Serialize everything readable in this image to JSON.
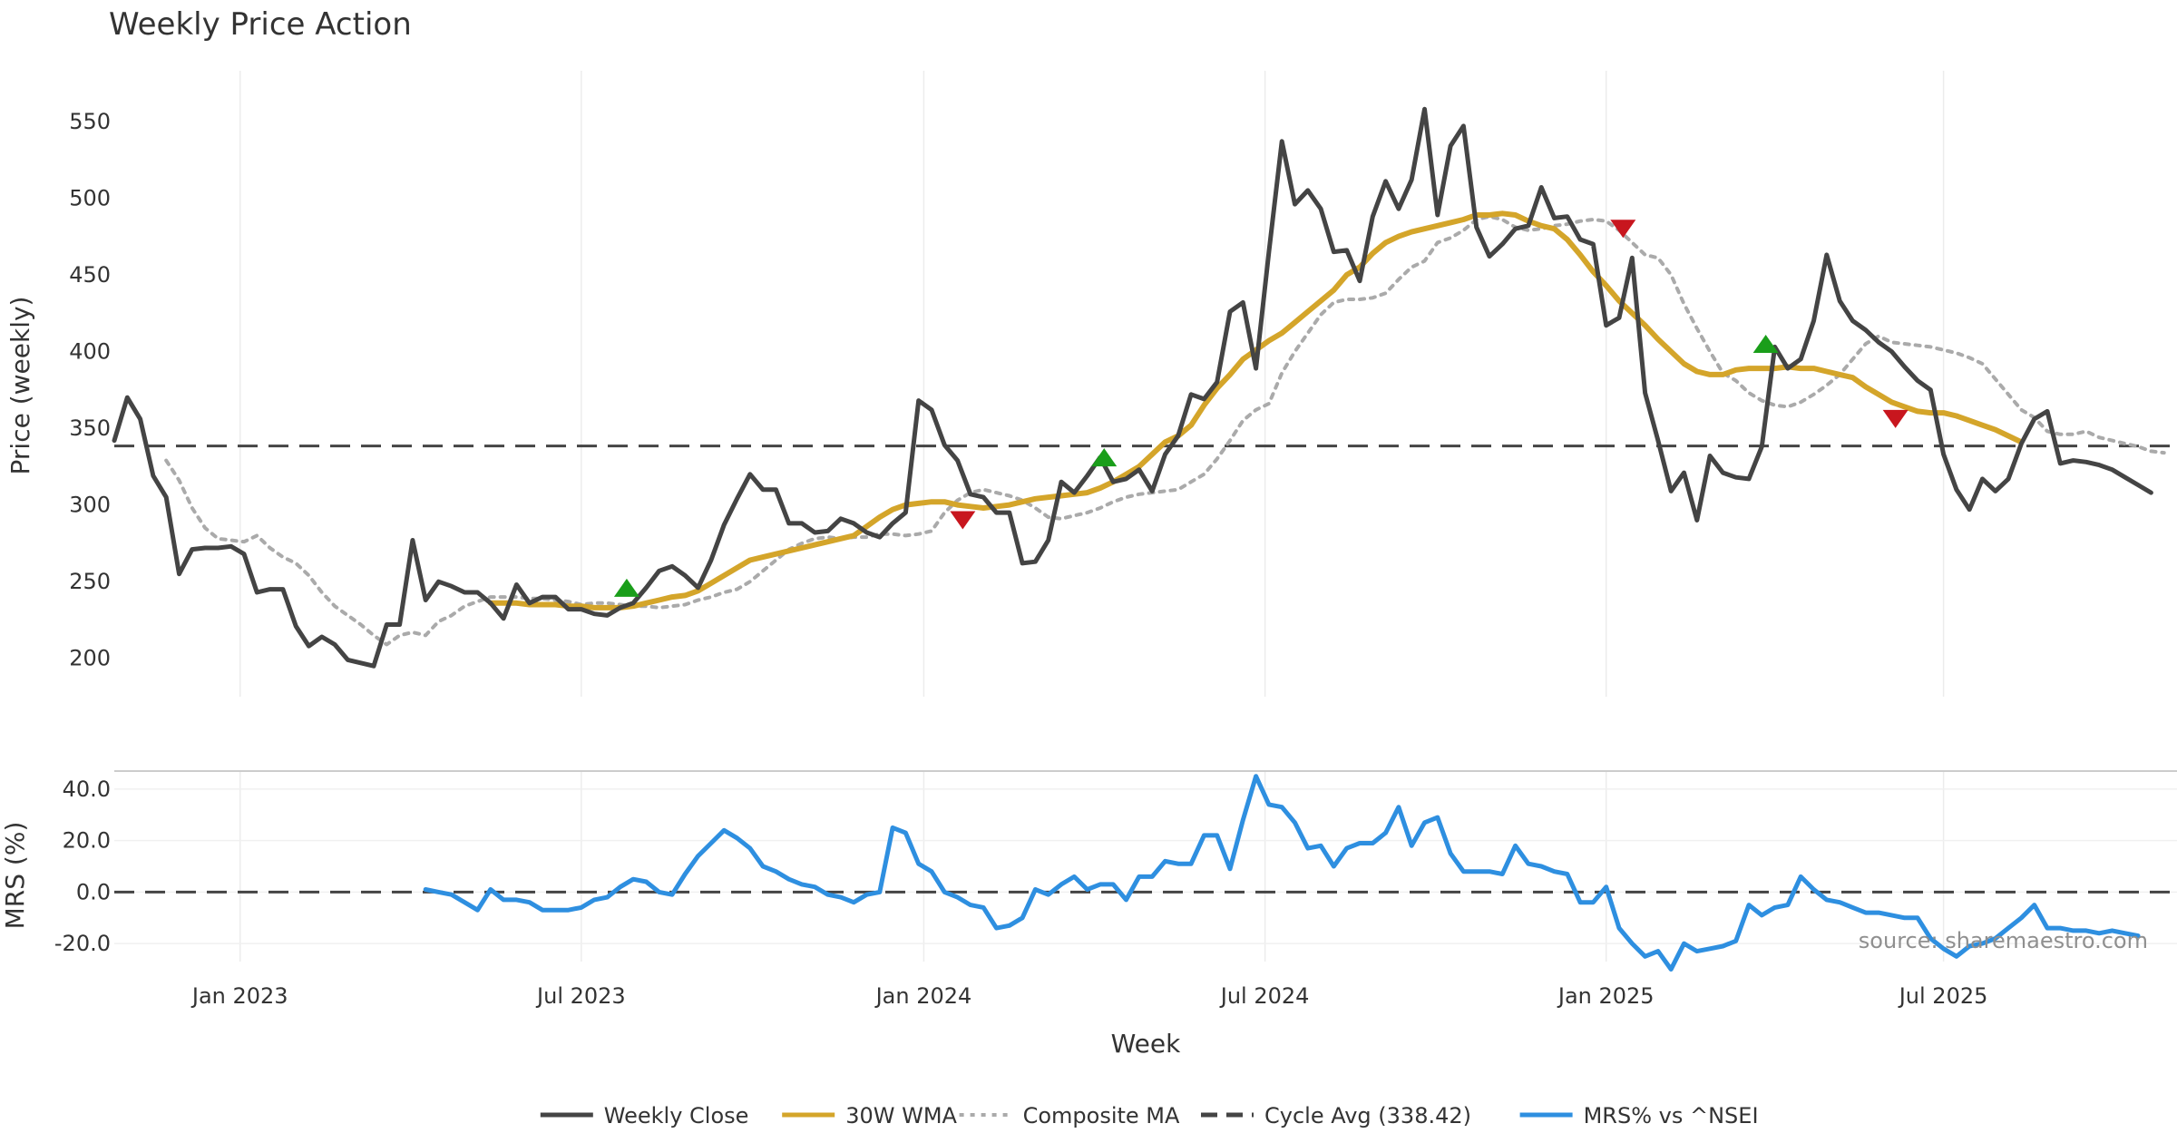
{
  "chart_data": [
    {
      "type": "line",
      "title": "Weekly Price Action",
      "ylabel": "Price (weekly)",
      "xlabel": "Week",
      "ylim": [
        175,
        583
      ],
      "yticks": [
        200,
        250,
        300,
        350,
        400,
        450,
        500,
        550
      ],
      "x_ticks": [
        {
          "label": "Jan 2023",
          "week": 9.7
        },
        {
          "label": "Jul 2023",
          "week": 36
        },
        {
          "label": "Jan 2024",
          "week": 62.4
        },
        {
          "label": "Jul 2024",
          "week": 88.7
        },
        {
          "label": "Jan 2025",
          "week": 115
        },
        {
          "label": "Jul 2025",
          "week": 141
        }
      ],
      "x_range": [
        0,
        159
      ],
      "grid": "vertical",
      "series": [
        {
          "name": "Weekly Close",
          "color": "#444444",
          "style": "solid",
          "start_week": 0,
          "values": [
            342,
            370,
            356,
            319,
            305,
            255,
            271,
            272,
            272,
            273,
            268,
            243,
            245,
            245,
            221,
            208,
            214,
            209,
            199,
            197,
            195,
            222,
            222,
            277,
            238,
            250,
            247,
            243,
            243,
            236,
            226,
            248,
            236,
            240,
            240,
            232,
            232,
            229,
            228,
            233,
            236,
            246,
            257,
            260,
            254,
            246,
            264,
            287,
            304,
            320,
            310,
            310,
            288,
            288,
            282,
            283,
            291,
            288,
            282,
            279,
            288,
            295,
            368,
            362,
            339,
            329,
            307,
            305,
            295,
            295,
            262,
            263,
            277,
            315,
            308,
            319,
            331,
            315,
            317,
            323,
            309,
            333,
            345,
            372,
            369,
            380,
            426,
            432,
            389,
            465,
            537,
            496,
            505,
            493,
            465,
            466,
            446,
            488,
            511,
            493,
            512,
            558,
            489,
            534,
            547,
            481,
            462,
            470,
            480,
            482,
            507,
            487,
            488,
            473,
            470,
            417,
            422,
            461,
            373,
            342,
            309,
            321,
            290,
            332,
            321,
            318,
            317,
            338,
            403,
            389,
            395,
            420,
            463,
            433,
            420,
            414,
            406,
            400,
            390,
            381,
            375,
            333,
            310,
            297,
            317,
            309,
            317,
            340,
            356,
            361,
            327,
            329,
            328,
            326,
            323,
            318,
            313,
            308
          ]
        },
        {
          "name": "30W WMA",
          "color": "#D4A52A",
          "style": "solid",
          "start_week": 29,
          "values": [
            236,
            236,
            236,
            235,
            235,
            235,
            234,
            234,
            233,
            233,
            233,
            234,
            236,
            238,
            240,
            241,
            244,
            249,
            254,
            259,
            264,
            266,
            268,
            270,
            272,
            274,
            276,
            278,
            280,
            286,
            292,
            297,
            300,
            301,
            302,
            302,
            300,
            299,
            298,
            299,
            300,
            302,
            304,
            305,
            306,
            307,
            308,
            311,
            315,
            320,
            325,
            333,
            341,
            345,
            352,
            365,
            376,
            385,
            395,
            401,
            407,
            412,
            419,
            426,
            433,
            440,
            450,
            455,
            464,
            471,
            475,
            478,
            480,
            482,
            484,
            486,
            489,
            489,
            490,
            489,
            485,
            482,
            480,
            473,
            463,
            452,
            443,
            433,
            425,
            417,
            408,
            400,
            392,
            387,
            385,
            385,
            388,
            389,
            389,
            389,
            390,
            389,
            389,
            387,
            385,
            383,
            377,
            372,
            367,
            364,
            361,
            360,
            360,
            358,
            355,
            352,
            349,
            345,
            341
          ]
        },
        {
          "name": "Composite MA",
          "color": "#aaaaaa",
          "style": "dotted",
          "start_week": 4,
          "values": [
            329,
            316,
            298,
            285,
            278,
            277,
            276,
            280,
            272,
            266,
            262,
            254,
            243,
            234,
            228,
            222,
            215,
            209,
            215,
            217,
            215,
            224,
            228,
            234,
            237,
            240,
            240,
            240,
            239,
            239,
            238,
            237,
            235,
            236,
            236,
            235,
            234,
            234,
            233,
            234,
            235,
            238,
            240,
            243,
            245,
            250,
            257,
            264,
            271,
            275,
            278,
            279,
            278,
            279,
            279,
            281,
            281,
            280,
            281,
            283,
            295,
            303,
            308,
            310,
            308,
            306,
            303,
            298,
            292,
            291,
            293,
            295,
            298,
            302,
            305,
            307,
            308,
            309,
            310,
            315,
            320,
            330,
            342,
            355,
            362,
            366,
            386,
            400,
            412,
            424,
            432,
            434,
            434,
            435,
            438,
            447,
            455,
            459,
            471,
            474,
            479,
            486,
            488,
            486,
            481,
            479,
            480,
            482,
            483,
            485,
            486,
            485,
            479,
            471,
            463,
            461,
            450,
            431,
            415,
            400,
            386,
            381,
            373,
            368,
            365,
            364,
            367,
            372,
            378,
            385,
            395,
            405,
            410,
            406,
            405,
            404,
            403,
            401,
            399,
            396,
            392,
            382,
            372,
            362,
            357,
            348,
            346,
            346,
            348,
            344,
            342,
            340,
            338,
            335,
            334
          ]
        },
        {
          "name": "Cycle Avg (338.42)",
          "color": "#444444",
          "style": "dashed",
          "value": 338.42
        }
      ],
      "signals": [
        {
          "type": "buy",
          "week": 39.5,
          "price": 246
        },
        {
          "type": "sell",
          "week": 65.4,
          "price": 290
        },
        {
          "type": "buy",
          "week": 76.3,
          "price": 331
        },
        {
          "type": "sell",
          "week": 116.3,
          "price": 480
        },
        {
          "type": "buy",
          "week": 127.3,
          "price": 405
        },
        {
          "type": "sell",
          "week": 137.3,
          "price": 356
        }
      ]
    },
    {
      "type": "line",
      "ylabel": "MRS (%)",
      "ylim": [
        -27,
        47
      ],
      "yticks": [
        -20.0,
        0.0,
        20.0,
        40.0
      ],
      "series": [
        {
          "name": "MRS% vs ^NSEI",
          "color": "#2E8FE0",
          "style": "solid",
          "start_week": 24,
          "values": [
            1,
            0,
            -1,
            -4,
            -7,
            1,
            -3,
            -3,
            -4,
            -7,
            -7,
            -7,
            -6,
            -3,
            -2,
            2,
            5,
            4,
            0,
            -1,
            7,
            14,
            19,
            24,
            21,
            17,
            10,
            8,
            5,
            3,
            2,
            -1,
            -2,
            -4,
            -1,
            0,
            25,
            23,
            11,
            8,
            0,
            -2,
            -5,
            -6,
            -14,
            -13,
            -10,
            1,
            -1,
            3,
            6,
            1,
            3,
            3,
            -3,
            6,
            6,
            12,
            11,
            11,
            22,
            22,
            9,
            28,
            45,
            34,
            33,
            27,
            17,
            18,
            10,
            17,
            19,
            19,
            23,
            33,
            18,
            27,
            29,
            15,
            8,
            8,
            8,
            7,
            18,
            11,
            10,
            8,
            7,
            -4,
            -4,
            2,
            -14,
            -20,
            -25,
            -23,
            -30,
            -20,
            -23,
            -22,
            -21,
            -19,
            -5,
            -9,
            -6,
            -5,
            6,
            1,
            -3,
            -4,
            -6,
            -8,
            -8,
            -9,
            -10,
            -10,
            -18,
            -22,
            -25,
            -21,
            -20,
            -18,
            -14,
            -10,
            -5,
            -14,
            -14,
            -15,
            -15,
            -16,
            -15,
            -16,
            -17
          ]
        },
        {
          "name": "Zero line",
          "color": "#444444",
          "style": "dashed",
          "value": 0
        }
      ],
      "annotation": "source: sharemaestro.com"
    }
  ],
  "legend": {
    "placement": "bottom-center",
    "items": [
      {
        "label": "Weekly Close",
        "color": "#444444",
        "style": "solid"
      },
      {
        "label": "30W WMA",
        "color": "#D4A52A",
        "style": "solid"
      },
      {
        "label": "Composite MA",
        "color": "#aaaaaa",
        "style": "dotted"
      },
      {
        "label": "Cycle Avg (338.42)",
        "color": "#444444",
        "style": "dashed"
      },
      {
        "label": "MRS% vs ^NSEI",
        "color": "#2E8FE0",
        "style": "solid"
      }
    ]
  }
}
